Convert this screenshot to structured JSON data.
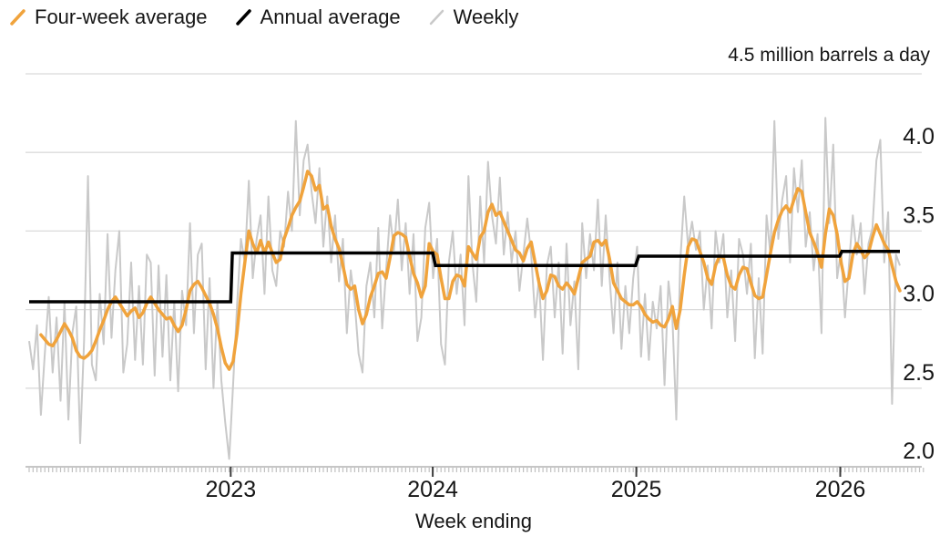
{
  "chart_data": {
    "type": "line",
    "unit_label": "4.5 million barrels a day",
    "xlabel": "Week ending",
    "ylim": [
      2.0,
      4.5
    ],
    "weeks": 223,
    "y_axis": {
      "gridline_values": [
        4.5,
        4.0,
        3.5,
        3.0,
        2.5
      ],
      "ticks": [
        {
          "value": 4.0,
          "label": "4.0"
        },
        {
          "value": 3.5,
          "label": "3.5"
        },
        {
          "value": 3.0,
          "label": "3.0"
        },
        {
          "value": 2.5,
          "label": "2.5"
        },
        {
          "value": 2.0,
          "label": "2.0"
        }
      ]
    },
    "x_axis": {
      "ticks": [
        {
          "week": 51.4,
          "label": "2023"
        },
        {
          "week": 102.9,
          "label": "2024"
        },
        {
          "week": 154.8,
          "label": "2025"
        },
        {
          "week": 206.8,
          "label": "2026"
        }
      ],
      "minor_tick_count": 229
    },
    "legend": [
      {
        "label": "Four-week average",
        "color": "#F0A33C"
      },
      {
        "label": "Annual average",
        "color": "#000000"
      },
      {
        "label": "Weekly",
        "color": "#C9C9C9"
      }
    ],
    "colors": {
      "grid": "#DBDBDB",
      "axis_line": "#C6C6C6",
      "minor_tick": "#C0C0C0",
      "major_tick": "#3C3C3C",
      "text": "#161616"
    },
    "series": {
      "weekly": {
        "name": "Weekly",
        "color": "#C9C9C9",
        "values": [
          2.8,
          2.62,
          2.9,
          2.33,
          2.72,
          3.08,
          2.6,
          2.95,
          2.42,
          3.05,
          2.3,
          2.85,
          3.02,
          2.15,
          2.8,
          3.85,
          2.65,
          2.55,
          3.1,
          2.78,
          3.48,
          2.82,
          3.25,
          3.5,
          2.6,
          2.78,
          3.3,
          2.68,
          3.15,
          2.65,
          3.35,
          3.3,
          2.58,
          3.28,
          2.7,
          3.22,
          2.55,
          3.05,
          2.48,
          3.12,
          2.9,
          3.55,
          2.85,
          3.35,
          3.42,
          2.62,
          3.2,
          2.5,
          3.05,
          2.55,
          2.28,
          2.05,
          2.52,
          3.02,
          3.45,
          3.3,
          3.82,
          3.2,
          3.45,
          3.6,
          3.1,
          3.72,
          3.25,
          3.15,
          3.5,
          3.4,
          3.75,
          3.5,
          4.2,
          3.6,
          3.95,
          4.05,
          3.75,
          3.55,
          3.9,
          3.4,
          3.72,
          3.3,
          3.6,
          3.18,
          3.45,
          2.85,
          3.25,
          3.05,
          2.72,
          2.6,
          3.15,
          3.3,
          2.95,
          3.52,
          2.88,
          3.25,
          3.6,
          3.38,
          3.7,
          3.25,
          3.55,
          3.1,
          3.48,
          2.8,
          2.95,
          3.52,
          3.68,
          3.2,
          3.45,
          2.78,
          2.65,
          3.3,
          3.5,
          3.1,
          3.35,
          2.9,
          3.85,
          3.3,
          3.05,
          3.72,
          3.3,
          3.94,
          3.6,
          3.42,
          3.84,
          3.35,
          3.62,
          3.3,
          3.5,
          3.12,
          3.35,
          3.58,
          3.35,
          2.95,
          3.2,
          2.68,
          3.28,
          3.4,
          2.95,
          3.3,
          2.72,
          3.42,
          2.9,
          3.18,
          2.62,
          3.55,
          3.2,
          3.48,
          3.25,
          3.7,
          3.15,
          3.6,
          3.2,
          2.85,
          3.3,
          2.75,
          3.15,
          2.85,
          3.2,
          3.4,
          2.7,
          3.1,
          2.68,
          3.05,
          2.88,
          3.15,
          2.52,
          3.18,
          2.95,
          2.3,
          3.3,
          3.72,
          3.4,
          3.56,
          3.38,
          3.5,
          3.0,
          3.28,
          2.88,
          3.5,
          3.3,
          3.48,
          2.95,
          3.25,
          2.8,
          3.45,
          3.35,
          3.1,
          3.42,
          2.69,
          3.2,
          2.72,
          3.6,
          3.35,
          4.2,
          3.45,
          3.7,
          3.85,
          3.3,
          3.9,
          3.62,
          3.95,
          3.4,
          3.62,
          3.25,
          3.48,
          2.85,
          4.22,
          3.55,
          4.05,
          3.2,
          3.38,
          2.95,
          3.28,
          3.6,
          3.35,
          3.55,
          3.1,
          3.42,
          3.52,
          3.95,
          4.08,
          3.3,
          3.62,
          2.4,
          3.35,
          3.28
        ]
      },
      "four_week_avg": {
        "name": "Four-week average",
        "color": "#F0A33C",
        "values": [
          null,
          null,
          null,
          2.84,
          2.81,
          2.78,
          2.77,
          2.81,
          2.86,
          2.91,
          2.87,
          2.82,
          2.74,
          2.7,
          2.69,
          2.71,
          2.74,
          2.8,
          2.87,
          2.93,
          3.0,
          3.05,
          3.08,
          3.04,
          3.0,
          2.96,
          2.99,
          3.01,
          2.95,
          2.98,
          3.04,
          3.08,
          3.04,
          3.0,
          2.97,
          2.94,
          2.95,
          2.9,
          2.86,
          2.9,
          3.0,
          3.12,
          3.16,
          3.18,
          3.14,
          3.09,
          3.04,
          2.97,
          2.88,
          2.76,
          2.66,
          2.62,
          2.67,
          2.85,
          3.1,
          3.3,
          3.5,
          3.42,
          3.36,
          3.44,
          3.36,
          3.43,
          3.36,
          3.3,
          3.32,
          3.45,
          3.52,
          3.6,
          3.65,
          3.69,
          3.78,
          3.88,
          3.85,
          3.76,
          3.79,
          3.64,
          3.66,
          3.53,
          3.45,
          3.39,
          3.28,
          3.16,
          3.13,
          3.15,
          3.0,
          2.91,
          2.97,
          3.08,
          3.15,
          3.23,
          3.24,
          3.2,
          3.33,
          3.47,
          3.49,
          3.48,
          3.46,
          3.34,
          3.23,
          3.17,
          3.08,
          3.15,
          3.42,
          3.37,
          3.35,
          3.2,
          3.07,
          3.07,
          3.18,
          3.22,
          3.21,
          3.15,
          3.4,
          3.36,
          3.32,
          3.46,
          3.5,
          3.62,
          3.67,
          3.6,
          3.62,
          3.56,
          3.5,
          3.44,
          3.38,
          3.36,
          3.31,
          3.39,
          3.43,
          3.3,
          3.17,
          3.07,
          3.12,
          3.22,
          3.21,
          3.15,
          3.13,
          3.17,
          3.14,
          3.1,
          3.2,
          3.3,
          3.32,
          3.34,
          3.43,
          3.44,
          3.41,
          3.44,
          3.32,
          3.17,
          3.12,
          3.07,
          3.05,
          3.03,
          3.03,
          3.05,
          3.02,
          2.97,
          2.94,
          2.92,
          2.93,
          2.9,
          2.89,
          2.94,
          3.02,
          2.88,
          3.0,
          3.22,
          3.4,
          3.45,
          3.44,
          3.37,
          3.3,
          3.2,
          3.16,
          3.28,
          3.34,
          3.33,
          3.22,
          3.15,
          3.13,
          3.22,
          3.27,
          3.26,
          3.17,
          3.09,
          3.07,
          3.08,
          3.22,
          3.36,
          3.49,
          3.57,
          3.63,
          3.66,
          3.62,
          3.7,
          3.77,
          3.75,
          3.62,
          3.49,
          3.43,
          3.36,
          3.27,
          3.48,
          3.64,
          3.6,
          3.48,
          3.3,
          3.18,
          3.2,
          3.35,
          3.42,
          3.38,
          3.33,
          3.36,
          3.46,
          3.54,
          3.48,
          3.42,
          3.38,
          3.28,
          3.18,
          3.12
        ]
      },
      "annual_avg": {
        "name": "Annual average",
        "color": "#000000",
        "segments": [
          {
            "from_week": 0,
            "to_week": 51.4,
            "value": 3.05
          },
          {
            "from_week": 51.8,
            "to_week": 102.9,
            "value": 3.36
          },
          {
            "from_week": 103.6,
            "to_week": 154.6,
            "value": 3.28
          },
          {
            "from_week": 155.4,
            "to_week": 206.6,
            "value": 3.34
          },
          {
            "from_week": 207.2,
            "to_week": 222,
            "value": 3.37
          }
        ]
      }
    }
  }
}
